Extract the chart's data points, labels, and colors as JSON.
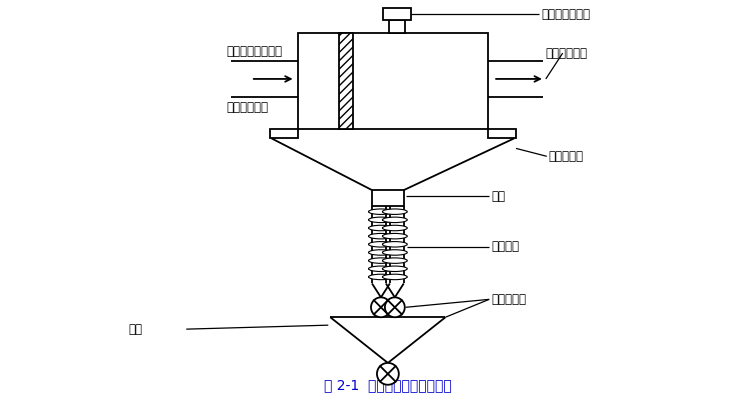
{
  "title": "图 2-1  一次除尘器结构示意图",
  "title_color": "#0000CC",
  "background_color": "#ffffff",
  "line_color": "#000000",
  "labels": {
    "gas_emergency": "气体紧急放散口",
    "gas_to_boiler": "至锅炉的气体",
    "gas_from_dryer": "来自干熧炉的气体",
    "gravity_wall": "重力除尘挡墙",
    "high_temp_expansion": "高温膨胀节",
    "ash_hopper": "灰斗",
    "water_cooled_tube": "水冷套管",
    "grid_ash_valve": "格式排灰阀",
    "ash_bin": "灰仓"
  },
  "fig_width": 7.41,
  "fig_height": 4.08,
  "dpi": 100
}
